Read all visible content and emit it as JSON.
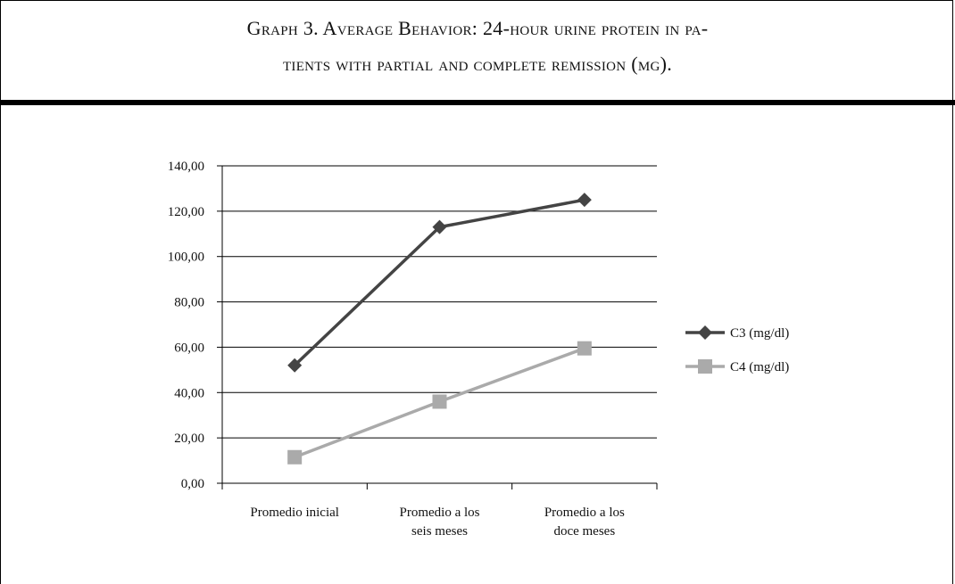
{
  "caption": {
    "line1": "Graph 3. Average Behavior: 24-hour urine protein in pa-",
    "line2": "tients with partial and complete remission (mg)."
  },
  "chart_data": {
    "type": "line",
    "title": "",
    "xlabel": "",
    "ylabel": "",
    "categories": [
      [
        "Promedio inicial"
      ],
      [
        "Promedio a los",
        "seis meses"
      ],
      [
        "Promedio a los",
        "doce meses"
      ]
    ],
    "ylim": [
      0,
      140
    ],
    "yticks": [
      0,
      20,
      40,
      60,
      80,
      100,
      120,
      140
    ],
    "ytick_labels": [
      "0,00",
      "20,00",
      "40,00",
      "60,00",
      "80,00",
      "100,00",
      "120,00",
      "140,00"
    ],
    "grid": true,
    "legend_position": "right",
    "series": [
      {
        "name": "C3 (mg/dl)",
        "values": [
          52,
          113,
          125
        ],
        "color": "#444444",
        "marker": "diamond"
      },
      {
        "name": "C4 (mg/dl)",
        "values": [
          11.5,
          36,
          59.5
        ],
        "color": "#aaaaaa",
        "marker": "square"
      }
    ]
  }
}
